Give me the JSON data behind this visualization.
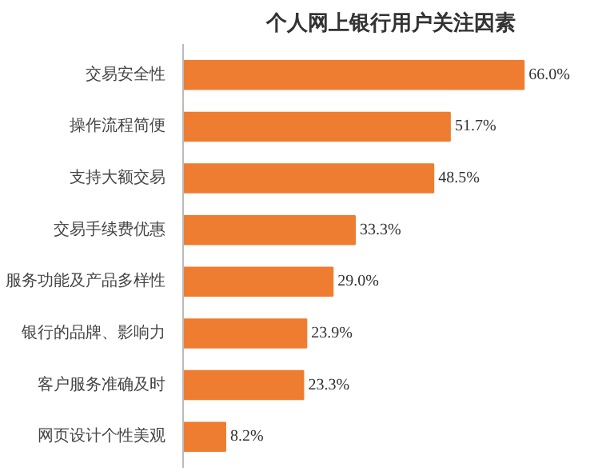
{
  "chart_data": {
    "type": "bar",
    "orientation": "horizontal",
    "title": "个人网上银行用户关注因素",
    "categories": [
      "交易安全性",
      "操作流程简便",
      "支持大额交易",
      "交易手续费优惠",
      "服务功能及产品多样性",
      "银行的品牌、影响力",
      "客户服务准确及时",
      "网页设计个性美观"
    ],
    "values": [
      66.0,
      51.7,
      48.5,
      33.3,
      29.0,
      23.9,
      23.3,
      8.2
    ],
    "value_labels": [
      "66.0%",
      "51.7%",
      "48.5%",
      "33.3%",
      "29.0%",
      "23.9%",
      "23.3%",
      "8.2%"
    ],
    "color": "#ee7d31",
    "grid": false
  }
}
